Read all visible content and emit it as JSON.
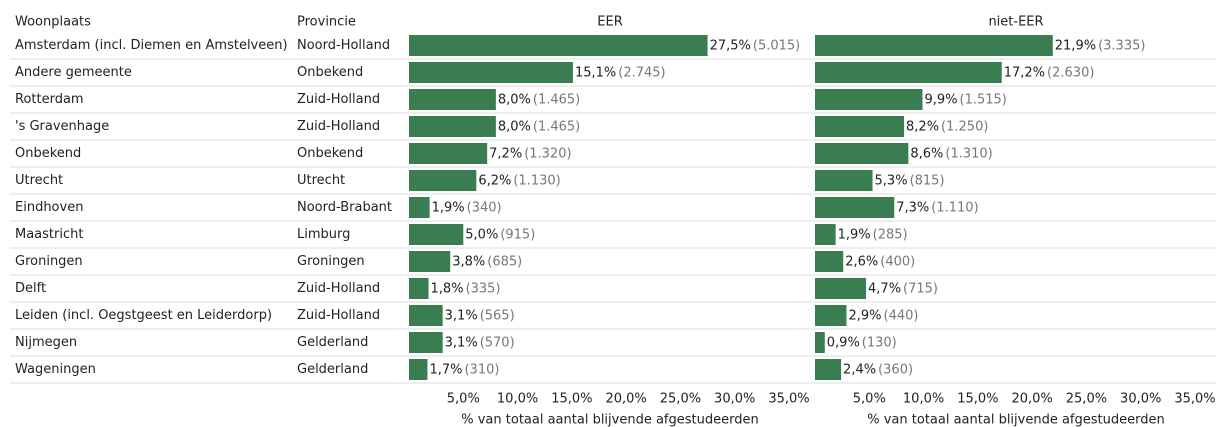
{
  "table": {
    "headers": [
      "Woonplaats",
      "Provincie"
    ],
    "rows": [
      [
        "Amsterdam (incl. Diemen en Amstelveen)",
        "Noord-Holland"
      ],
      [
        "Andere gemeente",
        "Onbekend"
      ],
      [
        "Rotterdam",
        "Zuid-Holland"
      ],
      [
        "'s Gravenhage",
        "Zuid-Holland"
      ],
      [
        "Onbekend",
        "Onbekend"
      ],
      [
        "Utrecht",
        "Utrecht"
      ],
      [
        "Eindhoven",
        "Noord-Brabant"
      ],
      [
        "Maastricht",
        "Limburg"
      ],
      [
        "Groningen",
        "Groningen"
      ],
      [
        "Delft",
        "Zuid-Holland"
      ],
      [
        "Leiden (incl. Oegstgeest en Leiderdorp)",
        "Zuid-Holland"
      ],
      [
        "Nijmegen",
        "Gelderland"
      ],
      [
        "Wageningen",
        "Gelderland"
      ]
    ]
  },
  "chart_data": [
    {
      "type": "bar",
      "title": "EER",
      "color": "#3a7d50",
      "values": [
        27.5,
        15.1,
        8.0,
        8.0,
        7.2,
        6.2,
        1.9,
        5.0,
        3.8,
        1.8,
        3.1,
        3.1,
        1.7
      ],
      "value_labels": [
        "27,5%",
        "15,1%",
        "8,0%",
        "8,0%",
        "7,2%",
        "6,2%",
        "1,9%",
        "5,0%",
        "3,8%",
        "1,8%",
        "3,1%",
        "3,1%",
        "1,7%"
      ],
      "counts": [
        5015,
        2745,
        1465,
        1465,
        1320,
        1130,
        340,
        915,
        685,
        335,
        565,
        570,
        310
      ],
      "count_labels": [
        "(5.015)",
        "(2.745)",
        "(1.465)",
        "(1.465)",
        "(1.320)",
        "(1.130)",
        "(340)",
        "(915)",
        "(685)",
        "(335)",
        "(565)",
        "(570)",
        "(310)"
      ],
      "xlabel": "% van totaal aantal blijvende afgestudeerden",
      "xlim": [
        0,
        35
      ],
      "xticks": [
        {
          "value": 5,
          "label": "5,0%"
        },
        {
          "value": 10,
          "label": "10,0%"
        },
        {
          "value": 15,
          "label": "15,0%"
        },
        {
          "value": 20,
          "label": "20,0%"
        },
        {
          "value": 25,
          "label": "25,0%"
        },
        {
          "value": 30,
          "label": "30,0%"
        },
        {
          "value": 35,
          "label": "35,0%"
        }
      ]
    },
    {
      "type": "bar",
      "title": "niet-EER",
      "color": "#3a7d50",
      "values": [
        21.9,
        17.2,
        9.9,
        8.2,
        8.6,
        5.3,
        7.3,
        1.9,
        2.6,
        4.7,
        2.9,
        0.9,
        2.4
      ],
      "value_labels": [
        "21,9%",
        "17,2%",
        "9,9%",
        "8,2%",
        "8,6%",
        "5,3%",
        "7,3%",
        "1,9%",
        "2,6%",
        "4,7%",
        "2,9%",
        "0,9%",
        "2,4%"
      ],
      "counts": [
        3335,
        2630,
        1515,
        1250,
        1310,
        815,
        1110,
        285,
        400,
        715,
        440,
        130,
        360
      ],
      "count_labels": [
        "(3.335)",
        "(2.630)",
        "(1.515)",
        "(1.250)",
        "(1.310)",
        "(815)",
        "(1.110)",
        "(285)",
        "(400)",
        "(715)",
        "(440)",
        "(130)",
        "(360)"
      ],
      "xlabel": "% van totaal aantal blijvende afgestudeerden",
      "xlim": [
        0,
        35
      ],
      "xticks": [
        {
          "value": 5,
          "label": "5,0%"
        },
        {
          "value": 10,
          "label": "10,0%"
        },
        {
          "value": 15,
          "label": "15,0%"
        },
        {
          "value": 20,
          "label": "20,0%"
        },
        {
          "value": 25,
          "label": "25,0%"
        },
        {
          "value": 30,
          "label": "30,0%"
        },
        {
          "value": 35,
          "label": "35,0%"
        }
      ]
    }
  ]
}
